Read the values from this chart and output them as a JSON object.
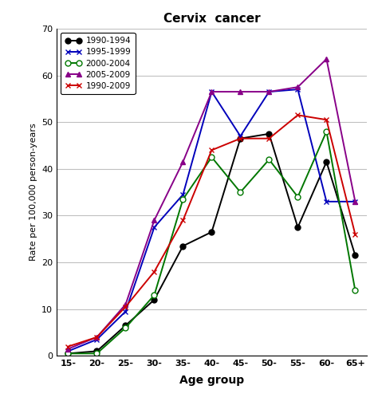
{
  "title": "Cervix  cancer",
  "xlabel": "Age group",
  "ylabel": "Rate per 100,000 person-years",
  "age_groups": [
    "15-",
    "20-",
    "25-",
    "30-",
    "35-",
    "40-",
    "45-",
    "50-",
    "55-",
    "60-",
    "65+"
  ],
  "series": [
    {
      "label": "1990-1994",
      "color": "#000000",
      "marker": "o",
      "marker_fill": "#000000",
      "linestyle": "-",
      "values": [
        0.5,
        1.0,
        6.5,
        12.0,
        23.5,
        26.5,
        46.5,
        47.5,
        27.5,
        41.5,
        21.5
      ]
    },
    {
      "label": "1995-1999",
      "color": "#0000bb",
      "marker": "x",
      "marker_fill": "#0000bb",
      "linestyle": "-",
      "values": [
        1.0,
        3.5,
        9.5,
        27.5,
        34.5,
        56.5,
        47.0,
        56.5,
        57.0,
        33.0,
        33.0
      ]
    },
    {
      "label": "2000-2004",
      "color": "#007700",
      "marker": "o",
      "marker_fill": "#ffffff",
      "linestyle": "-",
      "values": [
        0.5,
        0.5,
        6.0,
        13.0,
        33.5,
        42.5,
        35.0,
        42.0,
        34.0,
        48.0,
        14.0
      ]
    },
    {
      "label": "2005-2009",
      "color": "#880088",
      "marker": "^",
      "marker_fill": "#880088",
      "linestyle": "-",
      "values": [
        1.5,
        4.0,
        11.0,
        29.0,
        41.5,
        56.5,
        56.5,
        56.5,
        57.5,
        63.5,
        33.0
      ]
    },
    {
      "label": "1990-2009",
      "color": "#cc0000",
      "marker": "x",
      "marker_fill": "#cc0000",
      "linestyle": "-",
      "values": [
        2.0,
        4.0,
        10.5,
        18.0,
        29.0,
        44.0,
        46.5,
        46.5,
        51.5,
        50.5,
        26.0
      ]
    }
  ],
  "ylim": [
    0,
    70
  ],
  "yticks": [
    0,
    10,
    20,
    30,
    40,
    50,
    60,
    70
  ],
  "background_color": "#ffffff",
  "grid_color": "#c0c0c0"
}
